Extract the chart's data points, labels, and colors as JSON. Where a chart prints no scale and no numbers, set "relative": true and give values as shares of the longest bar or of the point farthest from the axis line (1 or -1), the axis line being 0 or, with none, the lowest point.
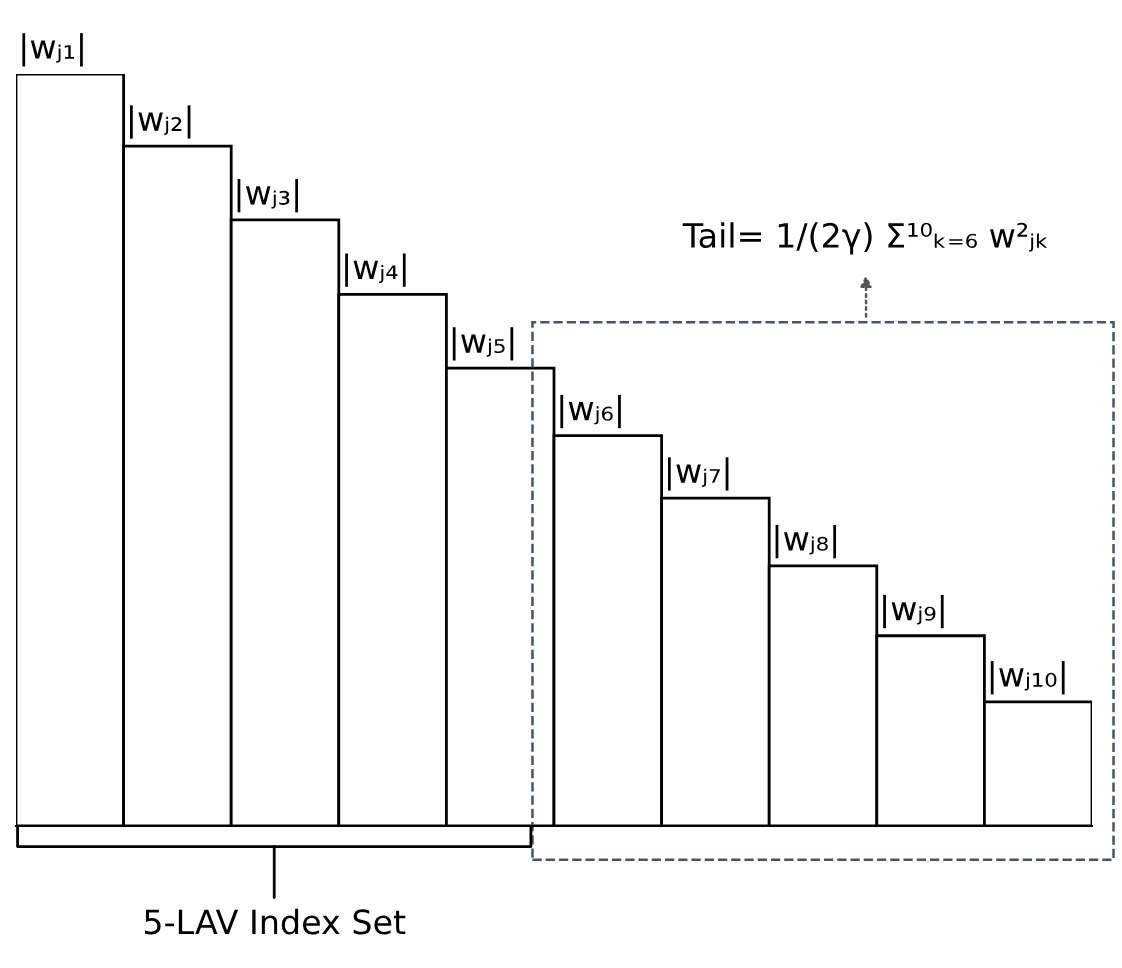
{
  "chart_data": {
    "type": "bar",
    "relative": true,
    "categories": [
      "|wⱼ₁|",
      "|wⱼ₂|",
      "|wⱼ₃|",
      "|wⱼ₄|",
      "|wⱼ₅|",
      "|wⱼ₆|",
      "|wⱼ₇|",
      "|wⱼ₈|",
      "|wⱼ₉|",
      "|wⱼ₁₀|"
    ],
    "values": [
      1,
      0.904,
      0.806,
      0.707,
      0.609,
      0.519,
      0.436,
      0.346,
      0.253,
      0.165
    ],
    "color": "#ffffff",
    "annotations": [
      "Tail= 1/(2γ) Σ¹⁰ₖ₌₆ w²ⱼₖ",
      "5-LAV Index Set"
    ]
  }
}
